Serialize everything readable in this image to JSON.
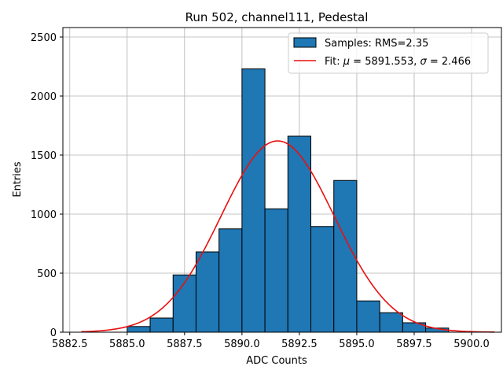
{
  "chart_data": {
    "type": "bar",
    "title": "Run 502, channel111, Pedestal",
    "xlabel": "ADC Counts",
    "ylabel": "Entries",
    "xlim": [
      5882.2,
      5901.3
    ],
    "ylim": [
      0,
      2580
    ],
    "xticks": [
      5882.5,
      5885.0,
      5887.5,
      5890.0,
      5892.5,
      5895.0,
      5897.5,
      5900.0
    ],
    "xtick_labels": [
      "5882.5",
      "5885.0",
      "5887.5",
      "5890.0",
      "5892.5",
      "5895.0",
      "5897.5",
      "5900.0"
    ],
    "yticks": [
      0,
      500,
      1000,
      1500,
      2000,
      2500
    ],
    "ytick_labels": [
      "0",
      "500",
      "1000",
      "1500",
      "2000",
      "2500"
    ],
    "grid": true,
    "legend_position": "top-right",
    "histogram": {
      "name": "Samples: RMS=2.35",
      "color": "#1f77b4",
      "edgecolor": "#000000",
      "bin_edges": [
        5885.0,
        5886.0,
        5887.0,
        5888.0,
        5889.0,
        5890.0,
        5891.0,
        5892.0,
        5893.0,
        5894.0,
        5895.0,
        5896.0,
        5897.0,
        5898.0,
        5899.0
      ],
      "counts": [
        48,
        120,
        485,
        680,
        875,
        2230,
        1045,
        1660,
        895,
        1285,
        265,
        165,
        80,
        35
      ]
    },
    "fit": {
      "name": "Fit: μ = 5891.553, σ = 2.466",
      "color": "#e8110f",
      "mu": 5891.553,
      "sigma": 2.466,
      "amplitude": 1620,
      "x_range": [
        5883.0,
        5901.0
      ]
    },
    "legend": {
      "samples_prefix": "Samples: RMS=2.35",
      "fit_prefix": "Fit: ",
      "mu_symbol": "μ",
      "mu_text": " = 5891.553, ",
      "sigma_symbol": "σ",
      "sigma_text": " = 2.466"
    }
  }
}
